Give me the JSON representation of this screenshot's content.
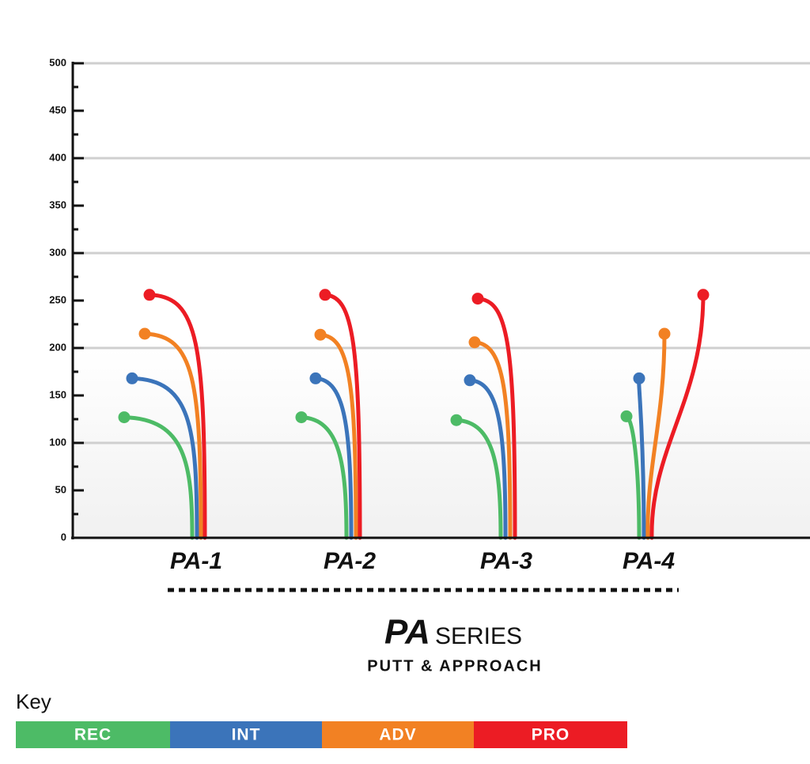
{
  "chart_data": {
    "type": "flight",
    "categories": [
      "PA-1",
      "PA-2",
      "PA-3",
      "PA-4"
    ],
    "highlight_category": "PA-3",
    "highlight_color": "#7cc242",
    "series": [
      {
        "name": "REC",
        "color": "#4dbb66",
        "values": [
          127,
          127,
          124,
          128
        ]
      },
      {
        "name": "INT",
        "color": "#3b74ba",
        "values": [
          168,
          168,
          166,
          168
        ]
      },
      {
        "name": "ADV",
        "color": "#f28123",
        "values": [
          215,
          214,
          206,
          215
        ]
      },
      {
        "name": "PRO",
        "color": "#ec1c24",
        "values": [
          256,
          256,
          252,
          256
        ]
      }
    ],
    "ylim": [
      0,
      500
    ],
    "yticks": [
      0,
      50,
      100,
      150,
      200,
      250,
      300,
      350,
      400,
      450,
      500
    ],
    "minor_yticks": [
      25,
      75,
      125,
      175,
      225,
      275,
      325,
      375,
      425,
      475
    ],
    "ygrid": [
      100,
      200,
      300,
      400,
      500
    ],
    "brand": "PA",
    "title": "SERIES",
    "subtitle": "PUTT & APPROACH",
    "legend_title": "Key"
  }
}
